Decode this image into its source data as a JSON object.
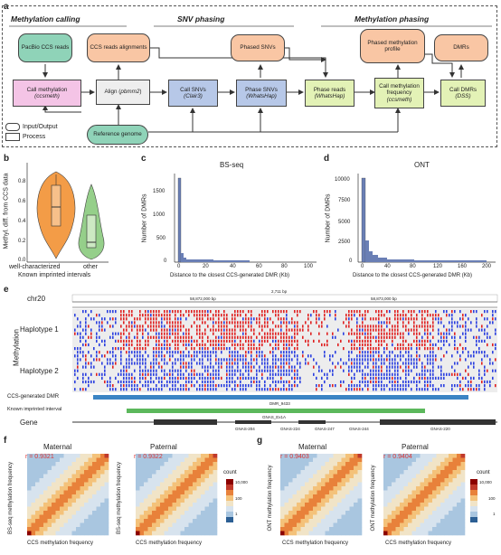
{
  "panel_a": {
    "letter": "a",
    "sections": [
      "Methylation calling",
      "SNV phasing",
      "Methylation phasing"
    ],
    "nodes": {
      "pacbio": "PacBio CCS reads",
      "ccs_align": "CCS reads alignments",
      "phased_snvs": "Phased SNVs",
      "phased_profile": "Phased methylation profile",
      "dmrs": "DMRs",
      "call_meth": "Call methylation",
      "call_meth_tool": "(ccsmeth)",
      "align": "Align (",
      "align_tool": "pbmm2",
      "call_snvs": "Call SNVs",
      "call_snvs_tool": "(Clair3)",
      "phase_snvs": "Phase SNVs",
      "phase_snvs_tool": "(WhatsHap)",
      "phase_reads": "Phase reads",
      "phase_reads_tool": "(WhatsHap)",
      "call_freq": "Call methylation frequency",
      "call_freq_tool": "(ccsmeth)",
      "call_dmrs": "Call DMRs",
      "call_dmrs_tool": "(DSS)",
      "ref": "Reference genome"
    },
    "legend": {
      "io": "Input/Output",
      "process": "Process"
    },
    "colors": {
      "green": "#8fd3b8",
      "orange": "#f9c6a4",
      "pink": "#f4c4e6",
      "blue": "#b7c8e8",
      "lime": "#e3f2b6",
      "gray": "#eeeeee"
    }
  },
  "panel_b": {
    "letter": "b",
    "ylabel": "Methyl. diff. from CCS data",
    "xlabel": "Known imprinted intervals",
    "categories": [
      "well-characterized",
      "other"
    ],
    "yticks": [
      "0.0",
      "0.2",
      "0.4",
      "0.6",
      "0.8"
    ]
  },
  "panel_c": {
    "letter": "c",
    "title": "BS-seq",
    "xlabel": "Distance to the closest CCS-generated DMR (Kb)",
    "ylabel": "Number of DMRs",
    "yticks": [
      "0",
      "500",
      "1000",
      "1500"
    ],
    "xticks": [
      "0",
      "20",
      "40",
      "60",
      "80",
      "100"
    ]
  },
  "panel_d": {
    "letter": "d",
    "title": "ONT",
    "xlabel": "Distance to the closest CCS-generated DMR (Kb)",
    "ylabel": "Number of DMRs",
    "yticks": [
      "0",
      "2500",
      "5000",
      "7500",
      "10000"
    ],
    "xticks": [
      "0",
      "40",
      "80",
      "120",
      "160",
      "200"
    ]
  },
  "panel_e": {
    "letter": "e",
    "chrom": "chr20",
    "scale": "2,711 bp",
    "coord1": "58,872,000 bp",
    "coord2": "58,873,000 bp",
    "methylation": "Methylation",
    "hap1": "Haplotype 1",
    "hap2": "Haplotype 2",
    "track_dmr": "CCS-generated DMR",
    "track_known": "Known imprinted interval",
    "track_gene": "Gene",
    "dmr_name": "DMR_9433",
    "known_name": "GNAS_Ex1A",
    "genes": [
      "GNAS-204",
      "GNAS-224",
      "GNAS-247",
      "GNAS-244",
      "GNAS-220"
    ]
  },
  "panel_f": {
    "letter": "f",
    "titles": [
      "Maternal",
      "Paternal"
    ],
    "r": [
      "r = 0.9321",
      "r = 0.9322"
    ],
    "ylabel": "BS-seq methylation frequency",
    "xlabel": "CCS methylation frequency",
    "ticks": [
      "0.0",
      "0.2",
      "0.4",
      "0.6",
      "0.8",
      "1.0"
    ],
    "legend_title": "count",
    "legend_ticks": [
      "10,000",
      "100",
      "1"
    ]
  },
  "panel_g": {
    "letter": "g",
    "titles": [
      "Maternal",
      "Paternal"
    ],
    "r": [
      "r = 0.9403",
      "r = 0.9404"
    ],
    "ylabel": "ONT methylation frequency",
    "xlabel": "CCS methylation frequency",
    "ticks": [
      "0.0",
      "0.2",
      "0.4",
      "0.6",
      "0.8",
      "1.0"
    ],
    "legend_title": "count",
    "legend_ticks": [
      "10,000",
      "100",
      "1"
    ]
  }
}
